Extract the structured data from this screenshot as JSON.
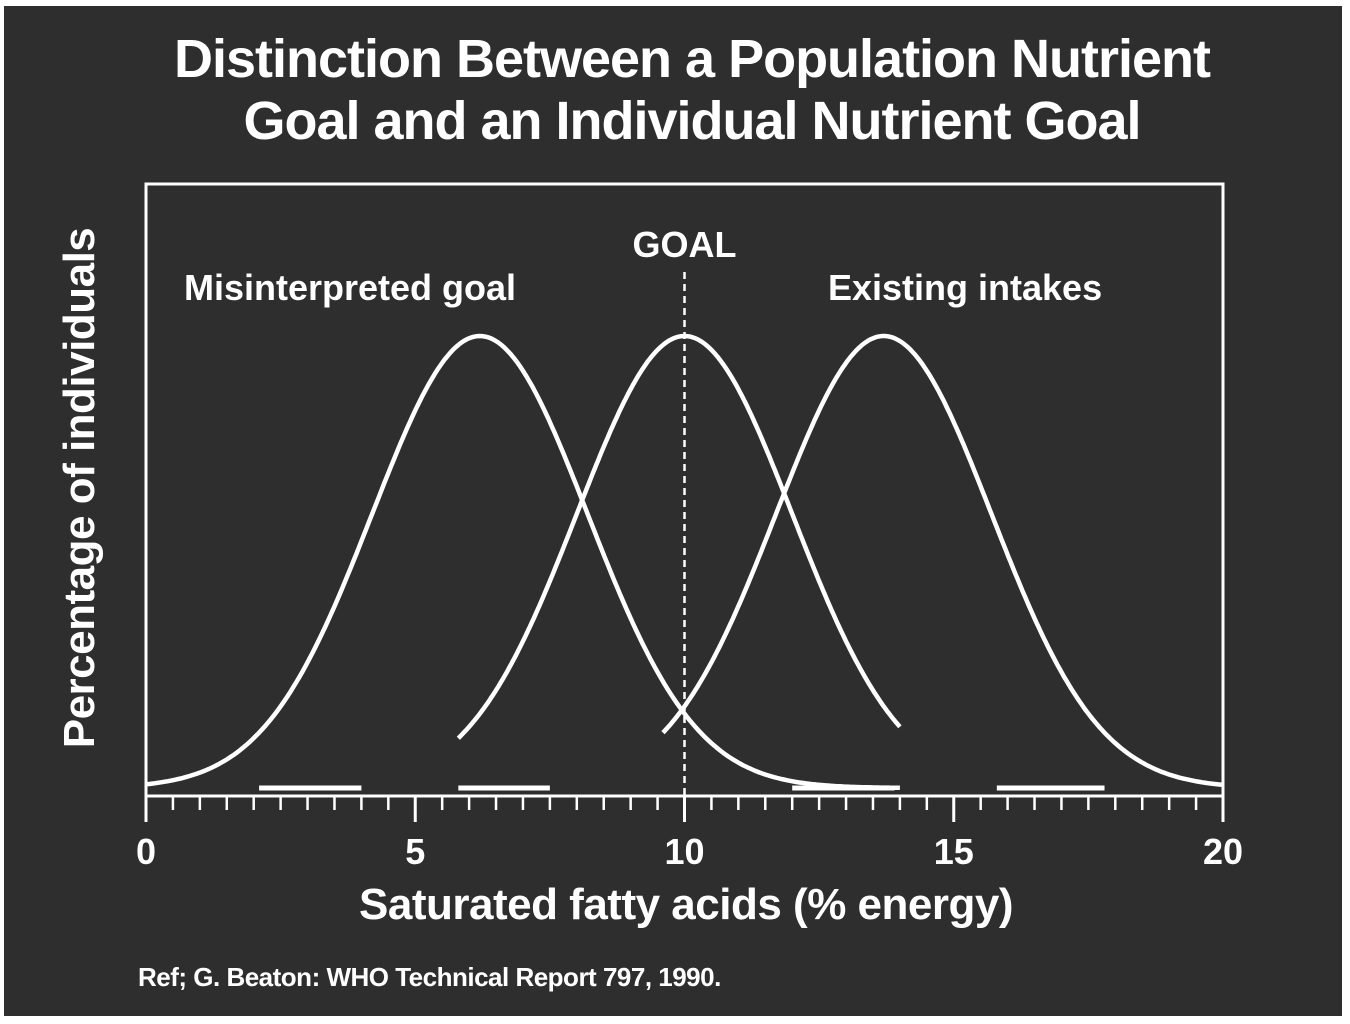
{
  "title_line_1": "Distinction Between a Population Nutrient",
  "title_line_2": "Goal and an Individual Nutrient Goal",
  "reference": "Ref;  G. Beaton: WHO  Technical Report 797, 1990.",
  "colors": {
    "background": "#2e2e2e",
    "foreground": "#ffffff",
    "page_border": "#ffffff"
  },
  "chart_data": {
    "type": "line",
    "xlabel": "Saturated fatty acids (% energy)",
    "ylabel": "Percentage of individuals",
    "xlim": [
      0,
      20
    ],
    "ylim": [
      0,
      1.15
    ],
    "x_tick_labels": [
      "0",
      "5",
      "10",
      "15",
      "20"
    ],
    "x_tick_values": [
      0,
      5,
      10,
      15,
      20
    ],
    "minor_tick_step": 0.5,
    "y_ticks": "none",
    "grid": false,
    "series": [
      {
        "label": "Misinterpreted goal",
        "distribution": "normal",
        "mean": 6.2,
        "sd": 2.0,
        "peak": 1.0,
        "x_range": [
          0,
          14
        ]
      },
      {
        "label": "",
        "distribution": "normal",
        "mean": 10.0,
        "sd": 2.0,
        "peak": 1.0,
        "x_range": [
          5.8,
          14
        ]
      },
      {
        "label": "Existing intakes",
        "distribution": "normal",
        "mean": 13.7,
        "sd": 2.0,
        "peak": 1.0,
        "x_range": [
          9.6,
          20
        ]
      }
    ],
    "reference_line": {
      "label": "GOAL",
      "x": 10,
      "style": "dashed"
    },
    "baseline_segments": [
      [
        2.1,
        4.0
      ],
      [
        5.8,
        7.5
      ],
      [
        12.0,
        13.9
      ],
      [
        15.8,
        17.8
      ]
    ]
  }
}
